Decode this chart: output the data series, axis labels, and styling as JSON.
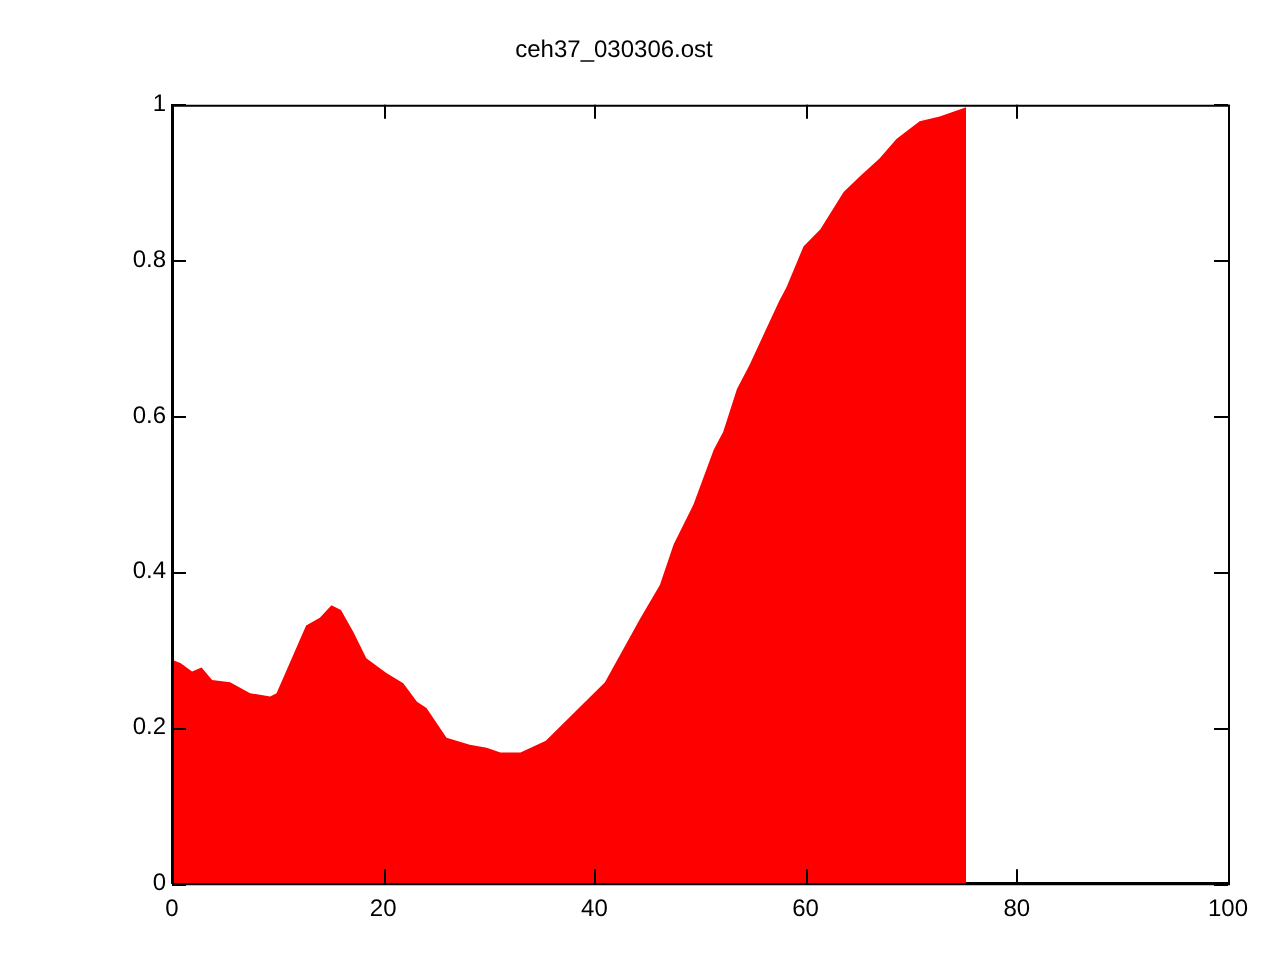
{
  "chart_data": {
    "type": "area",
    "title": "ceh37_030306.ost",
    "x": [
      0,
      0.8,
      1.9,
      2.8,
      3.8,
      5.5,
      7.4,
      9.3,
      9.9,
      12.7,
      14,
      15.1,
      16,
      17.2,
      18.4,
      20.3,
      21.9,
      23.2,
      24.1,
      26,
      28.2,
      29.8,
      31.1,
      33,
      35.4,
      41,
      44.3,
      46.2,
      47.5,
      49.4,
      51.3,
      52.2,
      53.5,
      54.7,
      56.2,
      57.5,
      58.2,
      59.8,
      61.4,
      63.6,
      65.2,
      67,
      68.6,
      70.8,
      72.7,
      75.2
    ],
    "series": [
      {
        "color": "#ff0000",
        "values": [
          0.287,
          0.283,
          0.272,
          0.277,
          0.261,
          0.258,
          0.244,
          0.24,
          0.244,
          0.331,
          0.341,
          0.357,
          0.351,
          0.322,
          0.289,
          0.27,
          0.257,
          0.233,
          0.225,
          0.187,
          0.178,
          0.174,
          0.168,
          0.168,
          0.183,
          0.258,
          0.339,
          0.383,
          0.435,
          0.487,
          0.557,
          0.58,
          0.635,
          0.666,
          0.71,
          0.748,
          0.766,
          0.818,
          0.84,
          0.888,
          0.909,
          0.931,
          0.956,
          0.979,
          0.985,
          0.997
        ]
      }
    ],
    "xlim": [
      0,
      100
    ],
    "xticks": [
      0,
      20,
      40,
      60,
      80,
      100
    ],
    "ylim": [
      0,
      1
    ],
    "yticks": [
      0,
      0.2,
      0.4,
      0.6,
      0.8,
      1
    ],
    "grid": false,
    "legend": false
  }
}
